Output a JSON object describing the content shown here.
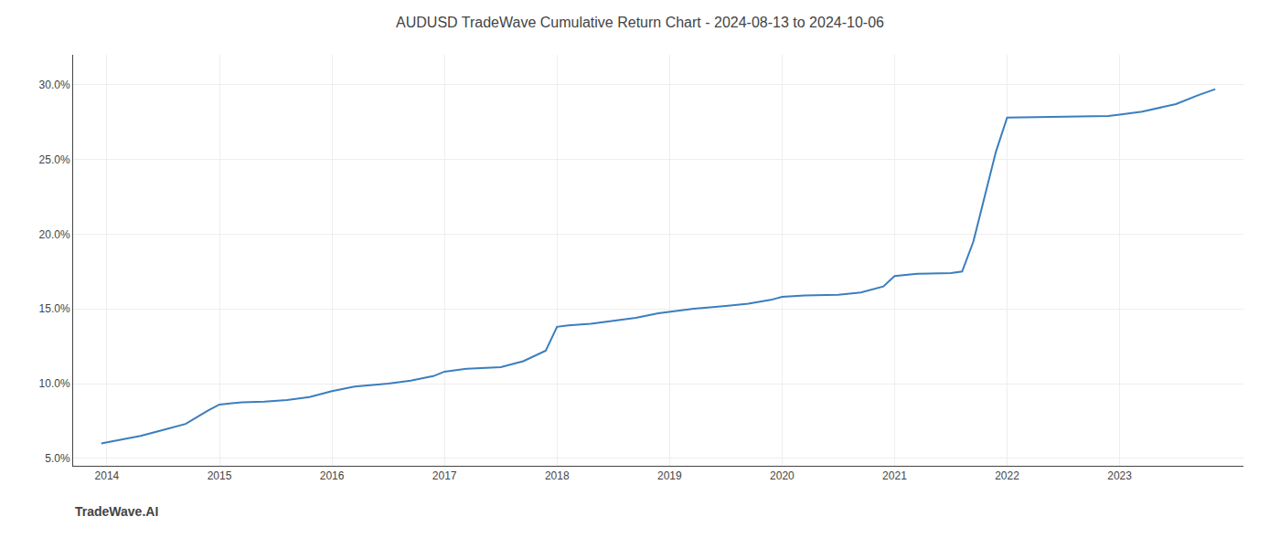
{
  "chart_data": {
    "type": "line",
    "title": "AUDUSD TradeWave Cumulative Return Chart - 2024-08-13 to 2024-10-06",
    "annotations": [
      "TradeWave.AI"
    ],
    "color": "#3a7ebf",
    "x": [
      2013.95,
      2014.1,
      2014.3,
      2014.5,
      2014.7,
      2014.9,
      2015.0,
      2015.2,
      2015.4,
      2015.6,
      2015.8,
      2016.0,
      2016.2,
      2016.5,
      2016.7,
      2016.9,
      2017.0,
      2017.2,
      2017.5,
      2017.7,
      2017.9,
      2018.0,
      2018.1,
      2018.3,
      2018.5,
      2018.7,
      2018.9,
      2019.0,
      2019.2,
      2019.5,
      2019.7,
      2019.9,
      2020.0,
      2020.2,
      2020.5,
      2020.7,
      2020.9,
      2021.0,
      2021.2,
      2021.5,
      2021.55,
      2021.6,
      2021.7,
      2021.8,
      2021.9,
      2022.0,
      2022.2,
      2022.5,
      2022.7,
      2022.9,
      2023.0,
      2023.2,
      2023.5,
      2023.7,
      2023.85
    ],
    "values": [
      6.0,
      6.2,
      6.5,
      6.9,
      7.3,
      8.2,
      8.6,
      8.75,
      8.8,
      8.9,
      9.1,
      9.5,
      9.8,
      10.0,
      10.2,
      10.5,
      10.8,
      11.0,
      11.1,
      11.5,
      12.2,
      13.8,
      13.9,
      14.0,
      14.2,
      14.4,
      14.7,
      14.8,
      15.0,
      15.2,
      15.35,
      15.6,
      15.8,
      15.9,
      15.95,
      16.1,
      16.5,
      17.2,
      17.35,
      17.4,
      17.45,
      17.5,
      19.5,
      22.5,
      25.5,
      27.8,
      27.82,
      27.85,
      27.87,
      27.9,
      28.0,
      28.2,
      28.7,
      29.3,
      29.7
    ],
    "xlim": [
      2013.7,
      2024.1
    ],
    "ylim": [
      4.5,
      32.0
    ],
    "xticks": [
      2014,
      2015,
      2016,
      2017,
      2018,
      2019,
      2020,
      2021,
      2022,
      2023
    ],
    "yticks": [
      {
        "value": 5.0,
        "label": "5.0%"
      },
      {
        "value": 10.0,
        "label": "10.0%"
      },
      {
        "value": 15.0,
        "label": "15.0%"
      },
      {
        "value": 20.0,
        "label": "20.0%"
      },
      {
        "value": 25.0,
        "label": "25.0%"
      },
      {
        "value": 30.0,
        "label": "30.0%"
      }
    ],
    "grid": true
  }
}
